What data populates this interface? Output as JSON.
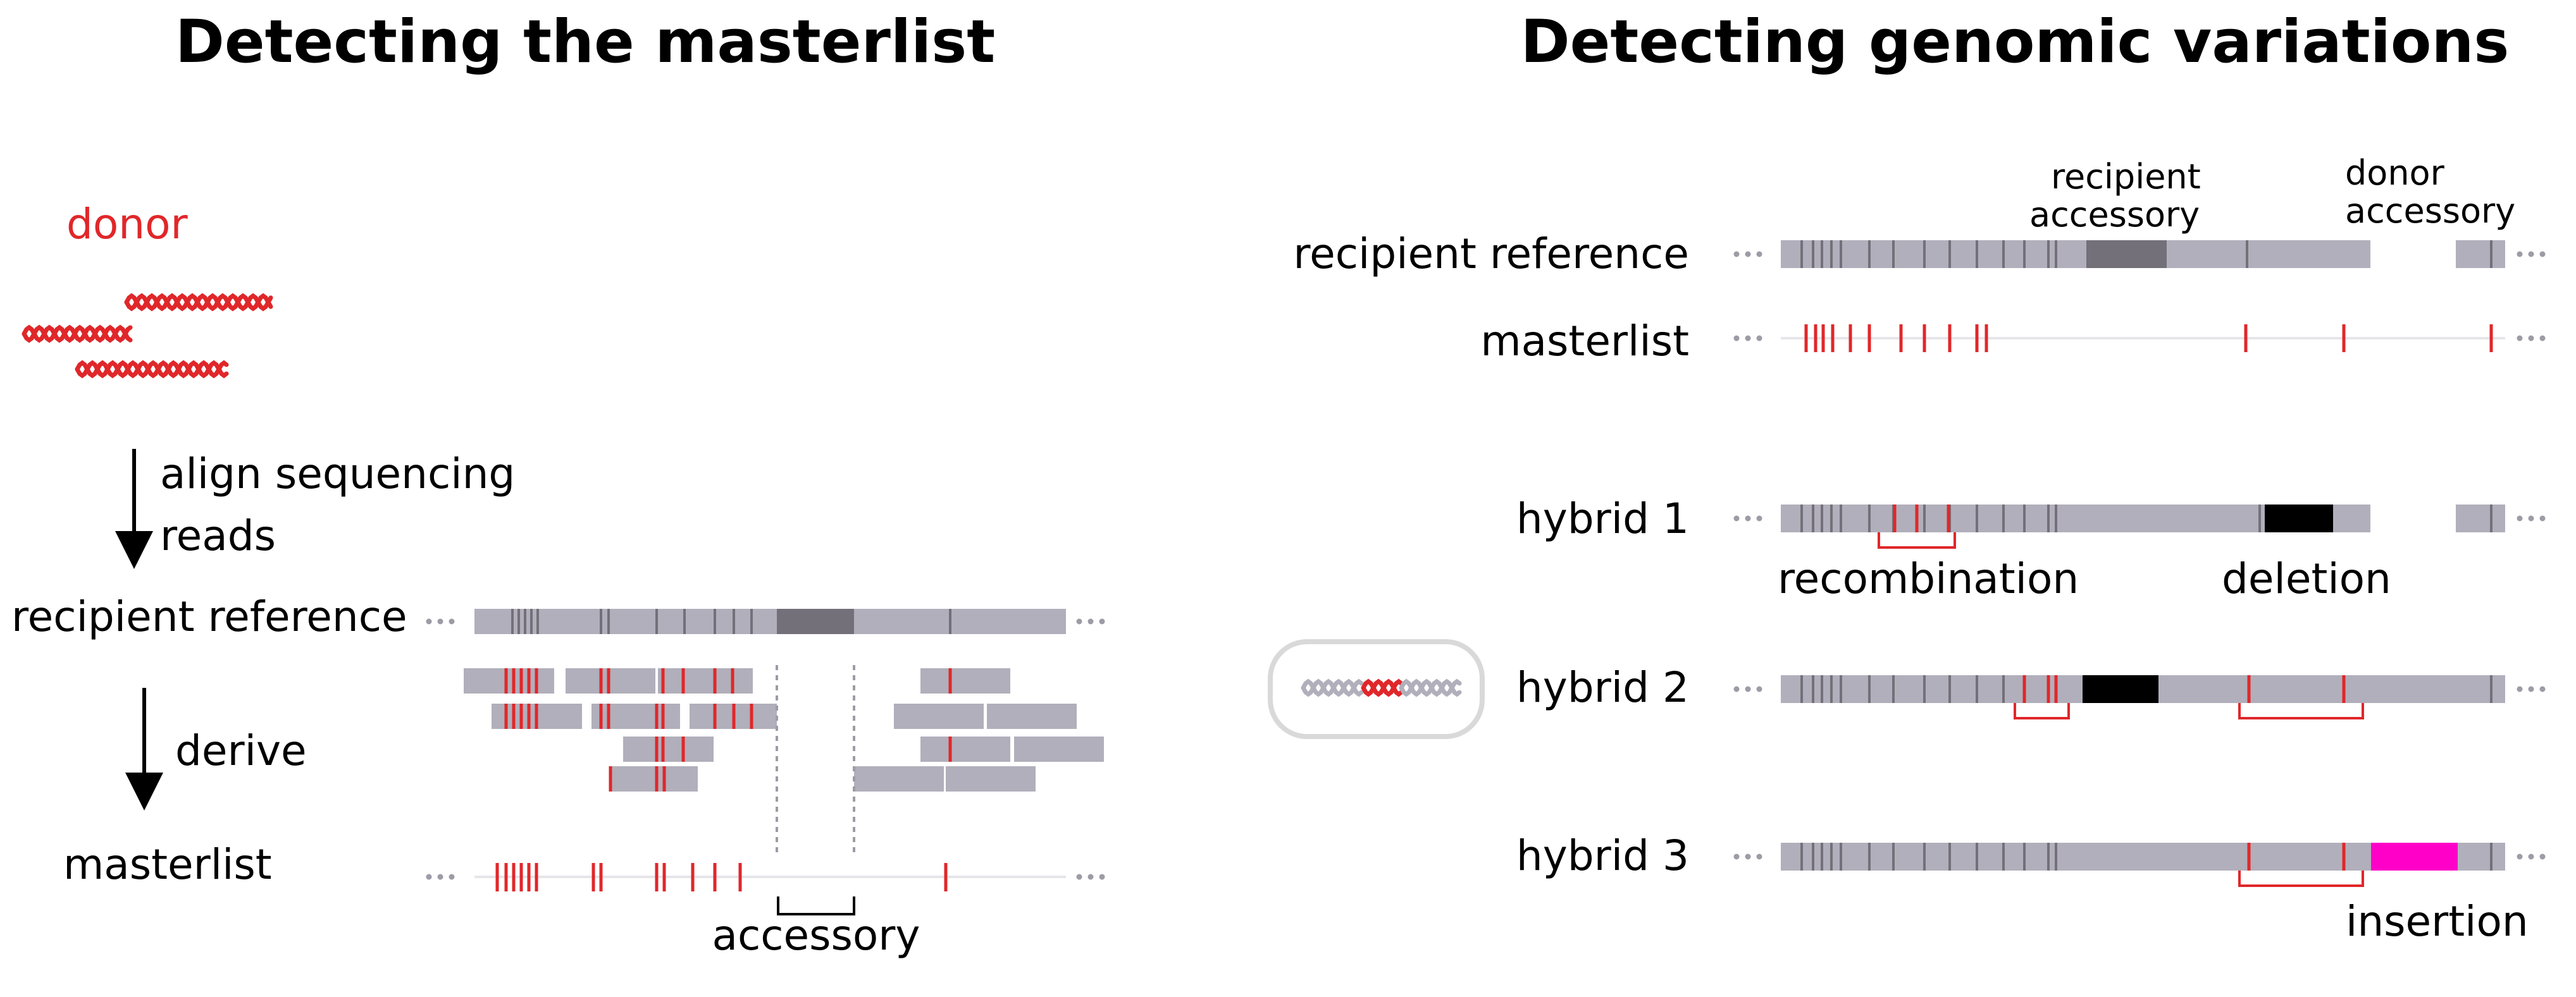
{
  "titles": {
    "left": "Detecting the masterlist",
    "right": "Detecting genomic variations"
  },
  "left": {
    "donor_label": "donor",
    "step1": [
      "align sequencing",
      "reads"
    ],
    "step2": "derive",
    "row_recipient": "recipient reference",
    "row_masterlist": "masterlist",
    "accessory_label": "accessory"
  },
  "right": {
    "top_labels": {
      "recipient_accessory": [
        "recipient",
        "accessory"
      ],
      "donor_accessory": [
        "donor",
        "accessory"
      ]
    },
    "rows": {
      "recipient": "recipient reference",
      "masterlist": "masterlist",
      "hybrid1": "hybrid 1",
      "hybrid2": "hybrid 2",
      "hybrid3": "hybrid 3"
    },
    "annotations": {
      "recombination": "recombination",
      "deletion": "deletion",
      "insertion": "insertion"
    }
  },
  "colors": {
    "track": "#b1afbb",
    "accessory": "#737079",
    "variant_red": "#e0272a",
    "deletion": "#000000",
    "insertion": "#ff00c8",
    "dots": "#9d9ba5",
    "capsule": "#d9d9d9"
  },
  "icons": {
    "donor_reads": "dna-helix-icon",
    "hybrid_cell": "hybrid-cell-icon",
    "arrow": "arrow-down-icon"
  }
}
